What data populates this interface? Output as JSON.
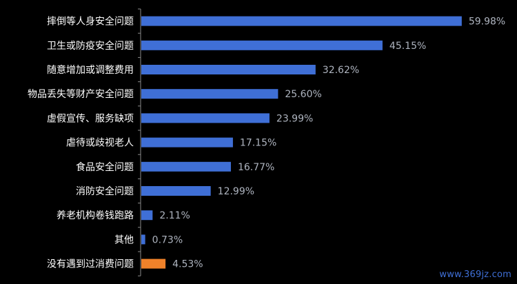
{
  "chart_data": {
    "type": "bar",
    "orientation": "horizontal",
    "categories": [
      "摔倒等人身安全问题",
      "卫生或防疫安全问题",
      "随意增加或调整费用",
      "物品丢失等财产安全问题",
      "虚假宣传、服务缺项",
      "虐待或歧视老人",
      "食品安全问题",
      "消防安全问题",
      "养老机构卷钱跑路",
      "其他",
      "没有遇到过消费问题"
    ],
    "values": [
      59.98,
      45.15,
      32.62,
      25.6,
      23.99,
      17.15,
      16.77,
      12.99,
      2.11,
      0.73,
      4.53
    ],
    "value_labels": [
      "59.98%",
      "45.15%",
      "32.62%",
      "25.60%",
      "23.99%",
      "17.15%",
      "16.77%",
      "12.99%",
      "2.11%",
      "0.73%",
      "4.53%"
    ],
    "bar_colors": [
      "#3f6fd6",
      "#3f6fd6",
      "#3f6fd6",
      "#3f6fd6",
      "#3f6fd6",
      "#3f6fd6",
      "#3f6fd6",
      "#3f6fd6",
      "#3f6fd6",
      "#3f6fd6",
      "#f0822a"
    ],
    "xlim": [
      0,
      60
    ],
    "grid": false,
    "title": "",
    "xlabel": "",
    "ylabel": ""
  },
  "colors": {
    "background": "#000000",
    "bar_primary": "#3f6fd6",
    "bar_highlight": "#f0822a",
    "label_text": "#ffffff",
    "value_text": "#aeb4bf",
    "axis_line": "#8a8a8a"
  },
  "watermark": "www.369jz.com"
}
